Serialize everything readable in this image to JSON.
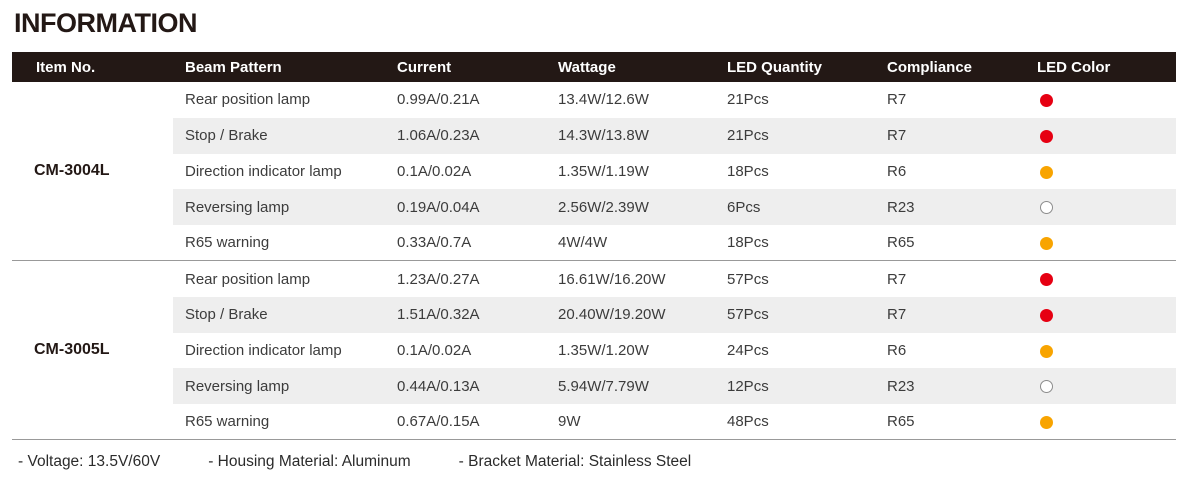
{
  "page": {
    "title": "INFORMATION",
    "footer_items": [
      "- Voltage: 13.5V/60V",
      "- Housing Material: Aluminum",
      "- Bracket Material: Stainless Steel"
    ]
  },
  "colors": {
    "header_bg": "#231815",
    "stripe": "#eeeeee",
    "separator_line": "#999999",
    "led_red": "#e60012",
    "led_amber": "#f8a400",
    "led_white": "#ffffff",
    "led_white_border": "#8c8c8c"
  },
  "table": {
    "columns": [
      "Item No.",
      "Beam Pattern",
      "Current",
      "Wattage",
      "LED Quantity",
      "Compliance",
      "LED Color"
    ],
    "groups": [
      {
        "item_no": "CM-3004L",
        "rows": [
          {
            "beam_pattern": "Rear position lamp",
            "current": "0.99A/0.21A",
            "wattage": "13.4W/12.6W",
            "led_quantity": "21Pcs",
            "compliance": "R7",
            "led_color": "red"
          },
          {
            "beam_pattern": "Stop / Brake",
            "current": "1.06A/0.23A",
            "wattage": "14.3W/13.8W",
            "led_quantity": "21Pcs",
            "compliance": "R7",
            "led_color": "red"
          },
          {
            "beam_pattern": "Direction indicator lamp",
            "current": "0.1A/0.02A",
            "wattage": "1.35W/1.19W",
            "led_quantity": "18Pcs",
            "compliance": "R6",
            "led_color": "amber"
          },
          {
            "beam_pattern": "Reversing lamp",
            "current": "0.19A/0.04A",
            "wattage": "2.56W/2.39W",
            "led_quantity": "6Pcs",
            "compliance": "R23",
            "led_color": "white"
          },
          {
            "beam_pattern": "R65 warning",
            "current": "0.33A/0.7A",
            "wattage": "4W/4W",
            "led_quantity": "18Pcs",
            "compliance": "R65",
            "led_color": "amber"
          }
        ]
      },
      {
        "item_no": "CM-3005L",
        "rows": [
          {
            "beam_pattern": "Rear position lamp",
            "current": "1.23A/0.27A",
            "wattage": "16.61W/16.20W",
            "led_quantity": "57Pcs",
            "compliance": "R7",
            "led_color": "red"
          },
          {
            "beam_pattern": "Stop / Brake",
            "current": "1.51A/0.32A",
            "wattage": "20.40W/19.20W",
            "led_quantity": "57Pcs",
            "compliance": "R7",
            "led_color": "red"
          },
          {
            "beam_pattern": "Direction indicator lamp",
            "current": "0.1A/0.02A",
            "wattage": "1.35W/1.20W",
            "led_quantity": "24Pcs",
            "compliance": "R6",
            "led_color": "amber"
          },
          {
            "beam_pattern": "Reversing lamp",
            "current": "0.44A/0.13A",
            "wattage": "5.94W/7.79W",
            "led_quantity": "12Pcs",
            "compliance": "R23",
            "led_color": "white"
          },
          {
            "beam_pattern": "R65 warning",
            "current": "0.67A/0.15A",
            "wattage": "9W",
            "led_quantity": "48Pcs",
            "compliance": "R65",
            "led_color": "amber"
          }
        ]
      }
    ]
  }
}
